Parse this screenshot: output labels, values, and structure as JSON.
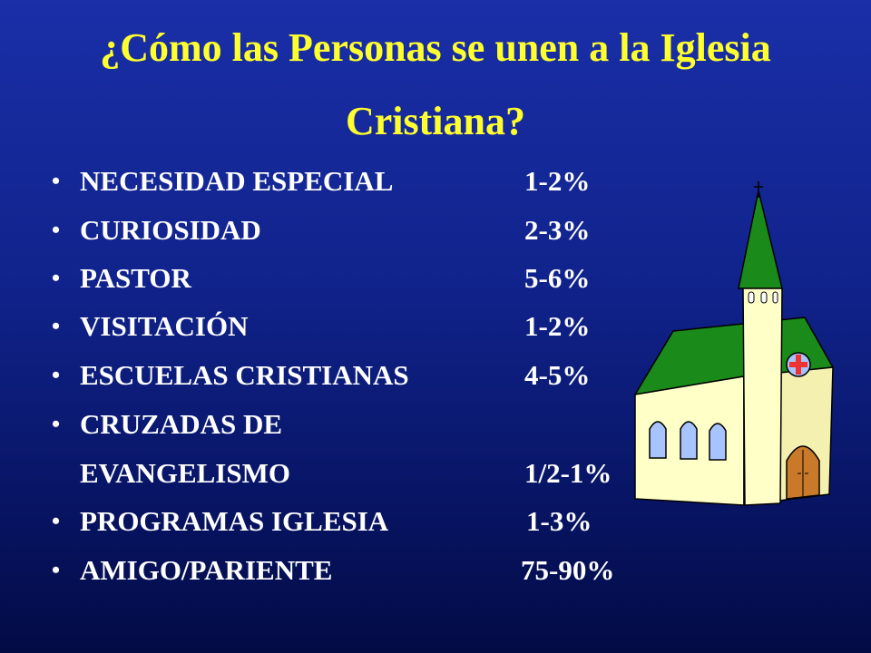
{
  "title": {
    "line1": "¿Cómo las Personas se unen a la Iglesia",
    "line2": "Cristiana?"
  },
  "items": [
    {
      "bullet": "•",
      "label": "NECESIDAD ESPECIAL",
      "value": "1-2%"
    },
    {
      "bullet": "•",
      "label": "CURIOSIDAD",
      "value": "2-3%"
    },
    {
      "bullet": "•",
      "label": "PASTOR",
      "value": "5-6%"
    },
    {
      "bullet": "•",
      "label": "VISITACIÓN",
      "value": "1-2%"
    },
    {
      "bullet": "•",
      "label": "ESCUELAS CRISTIANAS",
      "value": "4-5%"
    },
    {
      "bullet": "•",
      "label": "CRUZADAS DE",
      "value": ""
    },
    {
      "bullet": "",
      "label": "EVANGELISMO",
      "value": "1/2-1%"
    },
    {
      "bullet": "•",
      "label": "PROGRAMAS IGLESIA",
      "value": "1-3%"
    },
    {
      "bullet": "•",
      "label": "AMIGO/PARIENTE",
      "value": "75-90%"
    }
  ],
  "colors": {
    "background_top": "#1a2fa8",
    "background_bottom": "#030b45",
    "title": "#ffff2e",
    "text": "#ffffff",
    "church_wall": "#ffffc8",
    "church_roof": "#1a8a1a",
    "church_door": "#c87a2a",
    "church_window": "#a8c4ff"
  },
  "illustration": {
    "icon": "church-icon"
  }
}
